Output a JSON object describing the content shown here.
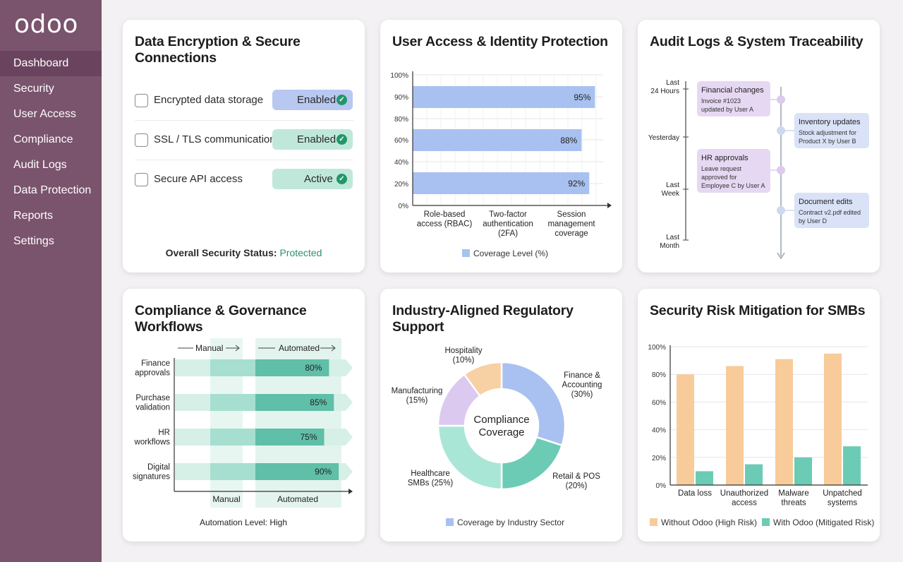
{
  "brand": "odoo",
  "nav": [
    "Dashboard",
    "Security",
    "User Access",
    "Compliance",
    "Audit Logs",
    "Data Protection",
    "Reports",
    "Settings"
  ],
  "encryption": {
    "title_line1": "Data Encryption & Secure",
    "title_line2": "Connections",
    "rows": [
      {
        "label": "Encrypted data storage",
        "status": "Enabled",
        "color": "#b8c8f0"
      },
      {
        "label": "SSL / TLS communication",
        "status": "Enabled",
        "color": "#bfe8da"
      },
      {
        "label": "Secure API access",
        "status": "Active",
        "color": "#bfe8da"
      }
    ],
    "overall_label": "Overall Security Status:",
    "overall_value": "Protected"
  },
  "access": {
    "title": "User Access & Identity Protection",
    "legend": "Coverage Level (%)",
    "bar_color": "#a9c1f0"
  },
  "audit": {
    "title": "Audit Logs & System Traceability",
    "axis_labels": [
      [
        "Last",
        "24 Hours"
      ],
      [
        "Yesterday"
      ],
      [
        "Last",
        "Week"
      ],
      [
        "Last",
        "Month"
      ]
    ],
    "events": [
      {
        "title": "Financial changes",
        "lines": [
          "Invoice #1023",
          "updated by User A"
        ],
        "color": "#e6d8f2"
      },
      {
        "title": "Inventory updates",
        "lines": [
          "Stock adjustment for",
          "Product X by User B"
        ],
        "color": "#d9e2f7"
      },
      {
        "title": "HR approvals",
        "lines": [
          "Leave request",
          "approved for",
          "Employee C by User A"
        ],
        "color": "#e6d8f2"
      },
      {
        "title": "Document edits",
        "lines": [
          "Contract v2.pdf edited",
          "by User D"
        ],
        "color": "#d9e2f7"
      }
    ]
  },
  "workflows": {
    "title": "Compliance & Governance Workflows",
    "header_manual": "Manual",
    "header_automated": "Automated",
    "footer_manual": "Manual",
    "footer_automated": "Automated",
    "summary": "Automation Level: High"
  },
  "regulatory": {
    "title": "Industry-Aligned Regulatory Support",
    "center_line1": "Compliance",
    "center_line2": "Coverage",
    "legend": "Coverage by Industry Sector"
  },
  "risk": {
    "title": "Security Risk Mitigation for SMBs",
    "legend_without": "Without Odoo (High Risk)",
    "legend_with": "With Odoo (Mitigated Risk)"
  },
  "chart_data": [
    {
      "type": "bar",
      "orientation": "horizontal",
      "title": "User Access & Identity Protection",
      "categories": [
        "Role-based access (RBAC)",
        "Two-factor authentication (2FA)",
        "Session management coverage"
      ],
      "values": [
        95,
        88,
        92
      ],
      "series": [
        {
          "name": "Coverage Level (%)",
          "values": [
            95,
            88,
            92
          ]
        }
      ],
      "yticks": [
        "0%",
        "20%",
        "40%",
        "60%",
        "80%",
        "90%",
        "100%"
      ],
      "ylim": [
        0,
        100
      ]
    },
    {
      "type": "bar",
      "orientation": "horizontal",
      "title": "Compliance & Governance Workflows",
      "categories": [
        "Finance approvals",
        "Purchase validation",
        "HR workflows",
        "Digital signatures"
      ],
      "values": [
        80,
        85,
        75,
        90
      ]
    },
    {
      "type": "pie",
      "title": "Industry-Aligned Regulatory Support",
      "categories": [
        "Finance & Accounting",
        "Retail & POS",
        "Healthcare SMBs",
        "Manufacturing",
        "Hospitality"
      ],
      "values": [
        30,
        20,
        25,
        15,
        10
      ],
      "colors": [
        "#a9c1f0",
        "#6ccbb4",
        "#a9e6d5",
        "#dcc9f0",
        "#f7d0a4"
      ],
      "legend": "Coverage by Industry Sector"
    },
    {
      "type": "bar",
      "title": "Security Risk Mitigation for SMBs",
      "categories": [
        "Data loss",
        "Unauthorized access",
        "Malware threats",
        "Unpatched systems"
      ],
      "series": [
        {
          "name": "Without Odoo (High Risk)",
          "values": [
            80,
            86,
            91,
            95
          ],
          "color": "#f8cb9b"
        },
        {
          "name": "With Odoo (Mitigated Risk)",
          "values": [
            10,
            15,
            20,
            28
          ],
          "color": "#6ccbb4"
        }
      ],
      "yticks": [
        "0%",
        "20%",
        "40%",
        "60%",
        "80%",
        "100%"
      ],
      "ylim": [
        0,
        100
      ]
    }
  ]
}
